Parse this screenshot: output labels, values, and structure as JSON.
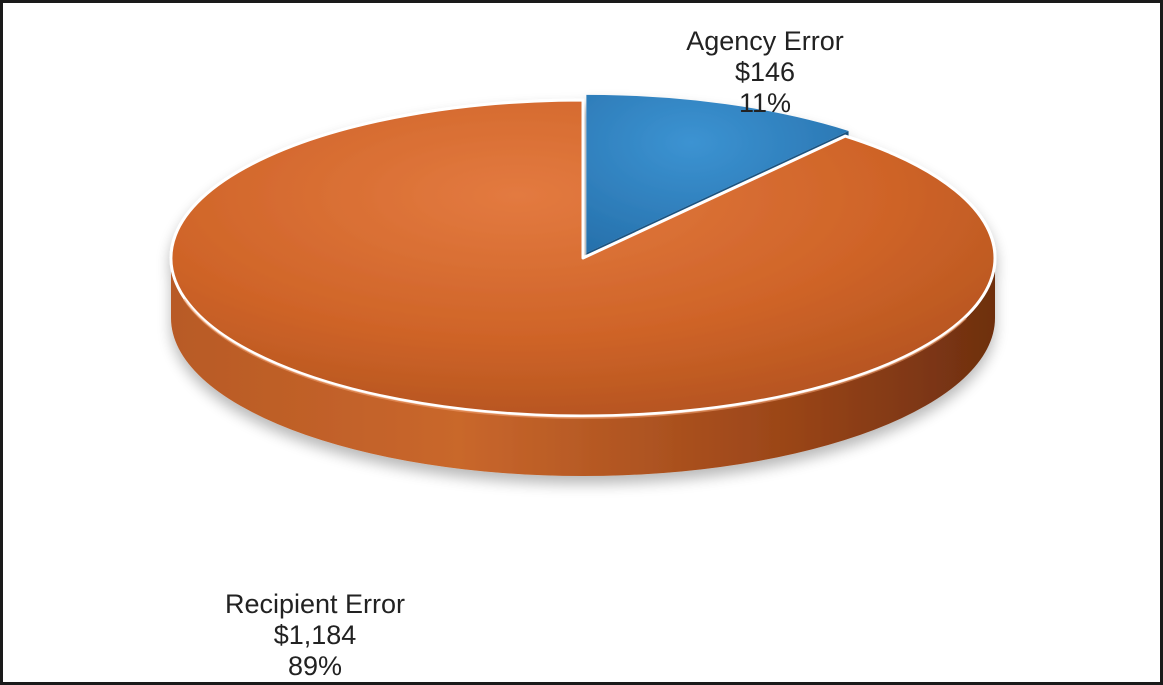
{
  "chart_data": {
    "type": "pie",
    "title": "",
    "style": "3d",
    "slices": [
      {
        "label": "Agency Error",
        "value_label": "$146",
        "percent_label": "11%",
        "value": 146,
        "percent": 11,
        "color": "#2f7fbd",
        "exploded": true
      },
      {
        "label": "Recipient Error",
        "value_label": "$1,184",
        "percent_label": "89%",
        "value": 1184,
        "percent": 89,
        "color": "#cf6428",
        "exploded": false
      }
    ]
  }
}
